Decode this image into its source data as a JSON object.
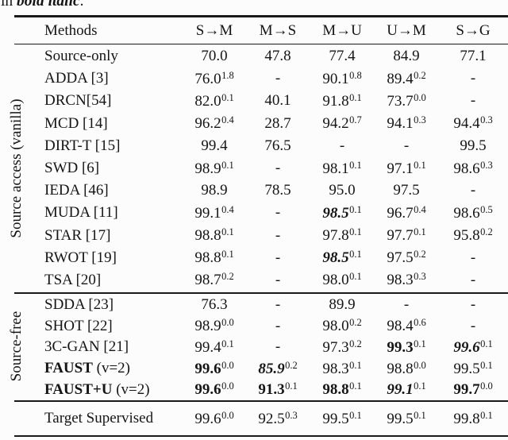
{
  "caption": {
    "prefix": "in ",
    "emph": "bold italic",
    "period": "."
  },
  "colors": {
    "text": "#151515",
    "rule": "#1a1a1a",
    "background": "#fcfcfc"
  },
  "table": {
    "columns": [
      "Methods",
      "S→M",
      "M→S",
      "M→U",
      "U→M",
      "S→G"
    ],
    "groups": [
      {
        "label": "Source access (vanilla)",
        "rows": [
          {
            "method": "Source-only",
            "cells": [
              {
                "v": "70.0"
              },
              {
                "v": "47.8"
              },
              {
                "v": "77.4"
              },
              {
                "v": "84.9"
              },
              {
                "v": "77.1"
              }
            ]
          },
          {
            "method": "ADDA [3]",
            "cells": [
              {
                "v": "76.0",
                "s": "1.8"
              },
              {
                "v": "-"
              },
              {
                "v": "90.1",
                "s": "0.8"
              },
              {
                "v": "89.4",
                "s": "0.2"
              },
              {
                "v": "-"
              }
            ]
          },
          {
            "method": "DRCN[54]",
            "cells": [
              {
                "v": "82.0",
                "s": "0.1"
              },
              {
                "v": "40.1"
              },
              {
                "v": "91.8",
                "s": "0.1"
              },
              {
                "v": "73.7",
                "s": "0.0"
              },
              {
                "v": "-"
              }
            ]
          },
          {
            "method": "MCD [14]",
            "cells": [
              {
                "v": "96.2",
                "s": "0.4"
              },
              {
                "v": "28.7"
              },
              {
                "v": "94.2",
                "s": "0.7"
              },
              {
                "v": "94.1",
                "s": "0.3"
              },
              {
                "v": "94.4",
                "s": "0.3"
              }
            ]
          },
          {
            "method": "DIRT-T [15]",
            "cells": [
              {
                "v": "99.4"
              },
              {
                "v": "76.5"
              },
              {
                "v": "-"
              },
              {
                "v": "-"
              },
              {
                "v": "99.5"
              }
            ]
          },
          {
            "method": "SWD [6]",
            "cells": [
              {
                "v": "98.9",
                "s": "0.1"
              },
              {
                "v": "-"
              },
              {
                "v": "98.1",
                "s": "0.1"
              },
              {
                "v": "97.1",
                "s": "0.1"
              },
              {
                "v": "98.6",
                "s": "0.3"
              }
            ]
          },
          {
            "method": "IEDA [46]",
            "cells": [
              {
                "v": "98.9"
              },
              {
                "v": "78.5"
              },
              {
                "v": "95.0"
              },
              {
                "v": "97.5"
              },
              {
                "v": "-"
              }
            ]
          },
          {
            "method": "MUDA [11]",
            "cells": [
              {
                "v": "99.1",
                "s": "0.4"
              },
              {
                "v": "-"
              },
              {
                "v": "98.5",
                "s": "0.1",
                "f": "bi"
              },
              {
                "v": "96.7",
                "s": "0.4"
              },
              {
                "v": "98.6",
                "s": "0.5"
              }
            ]
          },
          {
            "method": "STAR [17]",
            "cells": [
              {
                "v": "98.8",
                "s": "0.1"
              },
              {
                "v": "-"
              },
              {
                "v": "97.8",
                "s": "0.1"
              },
              {
                "v": "97.7",
                "s": "0.1"
              },
              {
                "v": "95.8",
                "s": "0.2"
              }
            ]
          },
          {
            "method": "RWOT [19]",
            "cells": [
              {
                "v": "98.8",
                "s": "0.1"
              },
              {
                "v": "-"
              },
              {
                "v": "98.5",
                "s": "0.1",
                "f": "bi"
              },
              {
                "v": "97.5",
                "s": "0.2"
              },
              {
                "v": "-"
              }
            ]
          },
          {
            "method": "TSA [20]",
            "cells": [
              {
                "v": "98.7",
                "s": "0.2"
              },
              {
                "v": "-"
              },
              {
                "v": "98.0",
                "s": "0.1"
              },
              {
                "v": "98.3",
                "s": "0.3"
              },
              {
                "v": "-"
              }
            ]
          }
        ]
      },
      {
        "label": "Source-free",
        "rows": [
          {
            "method": "SDDA [23]",
            "cells": [
              {
                "v": "76.3"
              },
              {
                "v": "-"
              },
              {
                "v": "89.9"
              },
              {
                "v": "-"
              },
              {
                "v": "-"
              }
            ]
          },
          {
            "method": "SHOT [22]",
            "cells": [
              {
                "v": "98.9",
                "s": "0.0"
              },
              {
                "v": "-"
              },
              {
                "v": "98.0",
                "s": "0.2"
              },
              {
                "v": "98.4",
                "s": "0.6"
              },
              {
                "v": "-"
              }
            ]
          },
          {
            "method": "3C-GAN [21]",
            "cells": [
              {
                "v": "99.4",
                "s": "0.1"
              },
              {
                "v": "-"
              },
              {
                "v": "97.3",
                "s": "0.2"
              },
              {
                "v": "99.3",
                "s": "0.1",
                "f": "b"
              },
              {
                "v": "99.6",
                "s": "0.1",
                "f": "bi"
              }
            ]
          },
          {
            "method": "FAUST",
            "b": true,
            "suffix": " (v=2)",
            "cells": [
              {
                "v": "99.6",
                "s": "0.0",
                "f": "b"
              },
              {
                "v": "85.9",
                "s": "0.2",
                "f": "bi"
              },
              {
                "v": "98.3",
                "s": "0.1"
              },
              {
                "v": "98.8",
                "s": "0.0"
              },
              {
                "v": "99.5",
                "s": "0.1"
              }
            ]
          },
          {
            "method": "FAUST+U",
            "b": true,
            "suffix": " (v=2)",
            "cells": [
              {
                "v": "99.6",
                "s": "0.0",
                "f": "b"
              },
              {
                "v": "91.3",
                "s": "0.1",
                "f": "b"
              },
              {
                "v": "98.8",
                "s": "0.1",
                "f": "b"
              },
              {
                "v": "99.1",
                "s": "0.1",
                "f": "bi"
              },
              {
                "v": "99.7",
                "s": "0.0",
                "f": "b"
              }
            ]
          }
        ]
      }
    ],
    "footer_row": {
      "method": "Target Supervised",
      "cells": [
        {
          "v": "99.6",
          "s": "0.0"
        },
        {
          "v": "92.5",
          "s": "0.3"
        },
        {
          "v": "99.5",
          "s": "0.1"
        },
        {
          "v": "99.5",
          "s": "0.1"
        },
        {
          "v": "99.8",
          "s": "0.1"
        }
      ]
    }
  }
}
